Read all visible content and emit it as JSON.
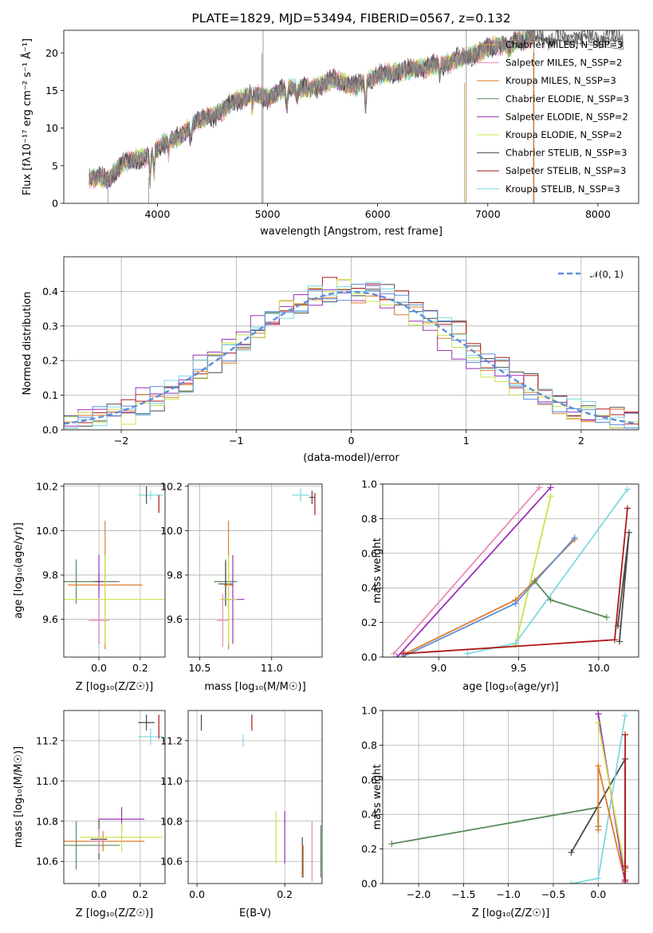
{
  "chart_data": [
    {
      "type": "line",
      "title": "PLATE=1829, MJD=53494, FIBERID=0567, z=0.132",
      "xlabel": "wavelength [Angstrom, rest frame]",
      "ylabel": "Flux [fλ10⁻¹⁷ erg cm⁻² s⁻¹ Å⁻¹]",
      "xlim": [
        3150,
        8370
      ],
      "ylim": [
        0,
        23
      ],
      "xticks": [
        4000,
        5000,
        6000,
        7000,
        8000
      ],
      "yticks": [
        0,
        5,
        10,
        15,
        20
      ],
      "grid": false,
      "legend_position": "top-right",
      "series": [
        {
          "name": "Chabrier MILES, N_SSP=3",
          "color": "#e6b93c"
        },
        {
          "name": "Salpeter MILES, N_SSP=2",
          "color": "#e88bb8"
        },
        {
          "name": "Kroupa MILES, N_SSP=3",
          "color": "#e07b2a"
        },
        {
          "name": "Chabrier ELODIE, N_SSP=3",
          "color": "#5a8a5a"
        },
        {
          "name": "Salpeter ELODIE, N_SSP=2",
          "color": "#9b30b8"
        },
        {
          "name": "Kroupa ELODIE, N_SSP=2",
          "color": "#c8e44a"
        },
        {
          "name": "Chabrier STELIB, N_SSP=3",
          "color": "#4a4a4a"
        },
        {
          "name": "Salpeter STELIB, N_SSP=3",
          "color": "#b01818"
        },
        {
          "name": "Kroupa STELIB, N_SSP=3",
          "color": "#7fd8e0"
        }
      ],
      "spectrum_continuum": {
        "wavelength": [
          3400,
          3550,
          3700,
          3850,
          3950,
          4050,
          4200,
          4350,
          4500,
          4700,
          4850,
          5000,
          5200,
          5400,
          5600,
          5800,
          6000,
          6200,
          6400,
          6600,
          6800,
          7000,
          7200,
          7400
        ],
        "flux": [
          3.5,
          3.2,
          5.5,
          6.0,
          6.5,
          8.0,
          8.8,
          11.0,
          11.5,
          13.5,
          14.5,
          14.0,
          15.5,
          15.2,
          16.5,
          15.5,
          17.0,
          17.5,
          18.0,
          18.5,
          19.5,
          20.5,
          21.5,
          22.0
        ]
      },
      "model_extension": {
        "wavelength": [
          7400,
          7600,
          7800,
          8000,
          8200
        ],
        "flux": [
          22.0,
          21.5,
          22.5,
          21.3,
          22.0
        ]
      }
    },
    {
      "type": "bar",
      "xlabel": "(data-model)/error",
      "ylabel": "Normed distribution",
      "xlim": [
        -2.5,
        2.5
      ],
      "ylim": [
        0,
        0.5
      ],
      "xticks": [
        -2,
        -1,
        0,
        1,
        2
      ],
      "yticks": [
        0.0,
        0.1,
        0.2,
        0.3,
        0.4
      ],
      "grid": true,
      "legend_position": "top-right",
      "reference_curve": {
        "name": "𝒩(0, 1)",
        "mean": 0,
        "sigma": 1,
        "color": "#5b8fd8"
      },
      "bin_width": 0.125,
      "series": [
        {
          "color": "#4a4a4a",
          "amplitude": 0.41,
          "center": 0.08,
          "sigma": 1.0
        },
        {
          "color": "#b01818",
          "amplitude": 0.42,
          "center": 0.05,
          "sigma": 0.98
        },
        {
          "color": "#e07b2a",
          "amplitude": 0.4,
          "center": 0.0,
          "sigma": 1.0
        },
        {
          "color": "#9b30b8",
          "amplitude": 0.4,
          "center": -0.1,
          "sigma": 1.0
        },
        {
          "color": "#c8e44a",
          "amplitude": 0.41,
          "center": -0.05,
          "sigma": 0.92
        },
        {
          "color": "#7fd8e0",
          "amplitude": 0.41,
          "center": 0.0,
          "sigma": 1.0
        },
        {
          "color": "#5b8fd8",
          "amplitude": 0.4,
          "center": 0.0,
          "sigma": 1.0
        }
      ]
    },
    {
      "type": "scatter",
      "xlabel": "Z [log₁₀(Z/Z☉)]",
      "ylabel": "age  [log₁₀(age/yr)]",
      "xlim": [
        -0.17,
        0.32
      ],
      "ylim": [
        9.43,
        10.21
      ],
      "xticks": [
        0.0,
        0.2
      ],
      "yticks": [
        9.6,
        9.8,
        10.0,
        10.2
      ],
      "grid": true,
      "errorbars": [
        {
          "color": "#5a8a5a",
          "x": -0.11,
          "y": 9.77,
          "xerr": 0.21,
          "yerr": 0.1
        },
        {
          "color": "#4a4a4a",
          "x": 0.0,
          "y": 9.77,
          "xerr": 0.02,
          "yerr": 0.04
        },
        {
          "color": "#e07b2a",
          "x": 0.03,
          "y": 9.755,
          "xerr": 0.18,
          "yerr": 0.29
        },
        {
          "color": "#9b30b8",
          "x": 0.0,
          "y": 9.69,
          "xerr": 0.0,
          "yerr": 0.2
        },
        {
          "color": "#e88bb8",
          "x": 0.0,
          "y": 9.595,
          "xerr": 0.05,
          "yerr": 0.1
        },
        {
          "color": "#c8e44a",
          "x": 0.03,
          "y": 9.69,
          "xerr": 0.29,
          "yerr": 0.2
        },
        {
          "color": "#7fd8e0",
          "x": 0.25,
          "y": 10.16,
          "xerr": 0.06,
          "yerr": 0.02
        },
        {
          "color": "#4a4a4a",
          "x": 0.23,
          "y": 10.16,
          "xerr": 0.0,
          "yerr": 0.04
        },
        {
          "color": "#b01818",
          "x": 0.29,
          "y": 10.12,
          "xerr": 0.0,
          "yerr": 0.04
        }
      ]
    },
    {
      "type": "scatter",
      "xlabel": "mass [log₁₀(M/M☉)]",
      "xlim": [
        10.42,
        11.35
      ],
      "ylim": [
        9.43,
        10.21
      ],
      "xticks": [
        10.5,
        11.0
      ],
      "yticks": [
        9.6,
        9.8,
        10.0,
        10.2
      ],
      "grid": true,
      "errorbars": [
        {
          "color": "#5a8a5a",
          "x": 10.68,
          "y": 9.77,
          "xerr": 0.08,
          "yerr": 0.1
        },
        {
          "color": "#4a4a4a",
          "x": 10.68,
          "y": 9.76,
          "xerr": 0.05,
          "yerr": 0.1
        },
        {
          "color": "#e07b2a",
          "x": 10.7,
          "y": 9.755,
          "xerr": 0.03,
          "yerr": 0.29
        },
        {
          "color": "#9b30b8",
          "x": 10.73,
          "y": 9.69,
          "xerr": 0.08,
          "yerr": 0.2
        },
        {
          "color": "#e88bb8",
          "x": 10.66,
          "y": 9.595,
          "xerr": 0.04,
          "yerr": 0.12
        },
        {
          "color": "#c8e44a",
          "x": 10.7,
          "y": 9.69,
          "xerr": 0.06,
          "yerr": 0.2
        },
        {
          "color": "#7fd8e0",
          "x": 11.2,
          "y": 10.16,
          "xerr": 0.06,
          "yerr": 0.03
        },
        {
          "color": "#4a4a4a",
          "x": 11.28,
          "y": 10.15,
          "xerr": 0.02,
          "yerr": 0.03
        },
        {
          "color": "#b01818",
          "x": 11.3,
          "y": 10.12,
          "xerr": 0.0,
          "yerr": 0.05
        }
      ]
    },
    {
      "type": "line",
      "xlabel": "age  [log₁₀(age/yr)]",
      "ylabel": "mass weight",
      "xlim": [
        8.65,
        10.25
      ],
      "ylim": [
        0,
        1
      ],
      "xticks": [
        9.0,
        9.5,
        10.0
      ],
      "yticks": [
        0.0,
        0.2,
        0.4,
        0.6,
        0.8,
        1.0
      ],
      "grid": true,
      "series": [
        {
          "color": "#e88bb8",
          "x": [
            8.72,
            9.63
          ],
          "y": [
            0.02,
            0.98
          ]
        },
        {
          "color": "#9b30b8",
          "x": [
            8.74,
            9.7
          ],
          "y": [
            0.0,
            0.98
          ]
        },
        {
          "color": "#c8e44a",
          "x": [
            9.48,
            9.7
          ],
          "y": [
            0.07,
            0.93
          ]
        },
        {
          "color": "#7fd8e0",
          "x": [
            9.18,
            9.48,
            10.18
          ],
          "y": [
            0.02,
            0.08,
            0.97
          ]
        },
        {
          "color": "#e07b2a",
          "x": [
            8.79,
            9.48,
            9.85
          ],
          "y": [
            0.02,
            0.33,
            0.68
          ]
        },
        {
          "color": "#5b8fd8",
          "x": [
            8.77,
            9.48,
            9.85
          ],
          "y": [
            0.0,
            0.31,
            0.69
          ]
        },
        {
          "color": "#5a8a5a",
          "x": [
            9.6,
            9.7,
            10.05
          ],
          "y": [
            0.44,
            0.33,
            0.23
          ]
        },
        {
          "color": "#b01818",
          "x": [
            8.78,
            10.1,
            10.18
          ],
          "y": [
            0.02,
            0.1,
            0.86
          ]
        },
        {
          "color": "#4a4a4a",
          "x": [
            10.13,
            10.19,
            10.12
          ],
          "y": [
            0.09,
            0.72,
            0.18
          ]
        }
      ]
    },
    {
      "type": "scatter",
      "xlabel": "Z [log₁₀(Z/Z☉)]",
      "ylabel": "mass [log₁₀(M/M☉)]",
      "xlim": [
        -0.17,
        0.32
      ],
      "ylim": [
        10.49,
        11.35
      ],
      "xticks": [
        0.0,
        0.2
      ],
      "yticks": [
        10.6,
        10.8,
        11.0,
        11.2
      ],
      "grid": true,
      "errorbars": [
        {
          "color": "#5a8a5a",
          "x": -0.11,
          "y": 10.68,
          "xerr": 0.21,
          "yerr": 0.12
        },
        {
          "color": "#4a4a4a",
          "x": 0.0,
          "y": 10.71,
          "xerr": 0.04,
          "yerr": 0.1
        },
        {
          "color": "#e07b2a",
          "x": 0.02,
          "y": 10.7,
          "xerr": 0.2,
          "yerr": 0.05
        },
        {
          "color": "#9b30b8",
          "x": 0.11,
          "y": 10.81,
          "xerr": 0.11,
          "yerr": 0.06
        },
        {
          "color": "#e88bb8",
          "x": 0.0,
          "y": 10.7,
          "xerr": 0.04,
          "yerr": 0.06
        },
        {
          "color": "#c8e44a",
          "x": 0.11,
          "y": 10.72,
          "xerr": 0.2,
          "yerr": 0.07
        },
        {
          "color": "#7fd8e0",
          "x": 0.25,
          "y": 11.22,
          "xerr": 0.06,
          "yerr": 0.04
        },
        {
          "color": "#4a4a4a",
          "x": 0.23,
          "y": 11.29,
          "xerr": 0.04,
          "yerr": 0.04
        },
        {
          "color": "#b01818",
          "x": 0.29,
          "y": 11.27,
          "xerr": 0.0,
          "yerr": 0.06
        }
      ]
    },
    {
      "type": "scatter",
      "xlabel": "E(B-V)",
      "xlim": [
        -0.02,
        0.285
      ],
      "ylim": [
        10.49,
        11.35
      ],
      "xticks": [
        0.0,
        0.2
      ],
      "yticks": [
        10.6,
        10.8,
        11.0,
        11.2
      ],
      "grid": true,
      "errorbars": [
        {
          "color": "#4a4a4a",
          "x": 0.01,
          "y": 11.29,
          "xerr": 0.0,
          "yerr": 0.04
        },
        {
          "color": "#7fd8e0",
          "x": 0.105,
          "y": 11.2,
          "xerr": 0.0,
          "yerr": 0.03
        },
        {
          "color": "#b01818",
          "x": 0.125,
          "y": 11.29,
          "xerr": 0.0,
          "yerr": 0.04
        },
        {
          "color": "#c8e44a",
          "x": 0.18,
          "y": 10.72,
          "xerr": 0.0,
          "yerr": 0.13
        },
        {
          "color": "#9b30b8",
          "x": 0.2,
          "y": 10.72,
          "xerr": 0.0,
          "yerr": 0.13
        },
        {
          "color": "#4a4a4a",
          "x": 0.24,
          "y": 10.62,
          "xerr": 0.0,
          "yerr": 0.1
        },
        {
          "color": "#e07b2a",
          "x": 0.242,
          "y": 10.6,
          "xerr": 0.0,
          "yerr": 0.08
        },
        {
          "color": "#e88bb8",
          "x": 0.262,
          "y": 10.65,
          "xerr": 0.0,
          "yerr": 0.15
        },
        {
          "color": "#5a8a5a",
          "x": 0.282,
          "y": 10.65,
          "xerr": 0.0,
          "yerr": 0.13
        }
      ]
    },
    {
      "type": "line",
      "xlabel": "Z [log₁₀(Z/Z☉)]",
      "ylabel": "mass weight",
      "xlim": [
        -2.4,
        0.45
      ],
      "ylim": [
        0,
        1
      ],
      "xticks": [
        -2.0,
        -1.5,
        -1.0,
        -0.5,
        0.0
      ],
      "yticks": [
        0.0,
        0.2,
        0.4,
        0.6,
        0.8,
        1.0
      ],
      "grid": true,
      "series": [
        {
          "color": "#5a8a5a",
          "x": [
            -2.3,
            0.0,
            0.0
          ],
          "y": [
            0.23,
            0.44,
            0.33
          ]
        },
        {
          "color": "#4a4a4a",
          "x": [
            -0.3,
            0.3,
            0.3
          ],
          "y": [
            0.18,
            0.72,
            0.09
          ]
        },
        {
          "color": "#7fd8e0",
          "x": [
            -0.3,
            0.0,
            0.3
          ],
          "y": [
            0.0,
            0.03,
            0.97
          ]
        },
        {
          "color": "#e07b2a",
          "x": [
            0.0,
            0.0,
            0.3
          ],
          "y": [
            0.31,
            0.68,
            0.01
          ]
        },
        {
          "color": "#e88bb8",
          "x": [
            0.0,
            0.3
          ],
          "y": [
            0.98,
            0.02
          ]
        },
        {
          "color": "#9b30b8",
          "x": [
            0.0,
            0.3
          ],
          "y": [
            0.98,
            0.01
          ]
        },
        {
          "color": "#c8e44a",
          "x": [
            0.0,
            0.3
          ],
          "y": [
            0.93,
            0.07
          ]
        },
        {
          "color": "#b01818",
          "x": [
            0.3,
            0.3,
            0.3
          ],
          "y": [
            0.86,
            0.1,
            0.02
          ]
        }
      ]
    }
  ]
}
